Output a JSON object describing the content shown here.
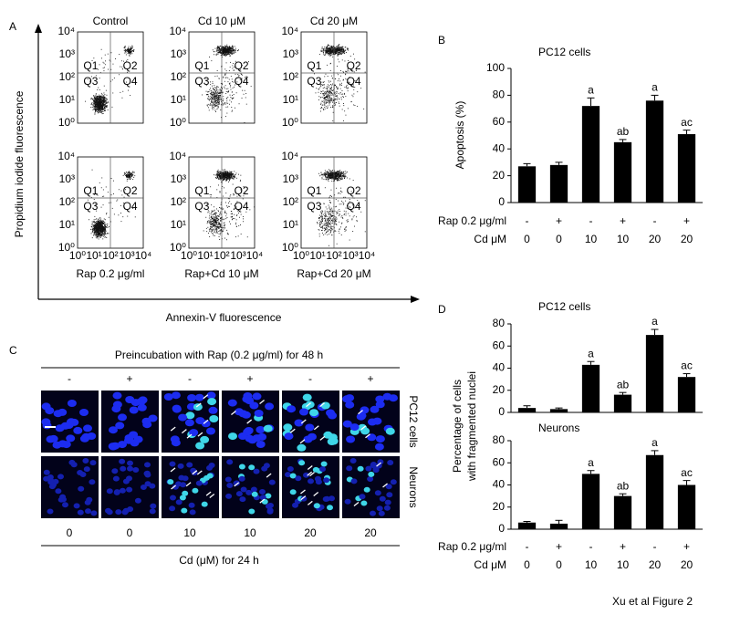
{
  "panel_labels": [
    "A",
    "B",
    "C",
    "D"
  ],
  "panel_a": {
    "ylabel": "Propidium iodide fluorescence",
    "xlabel": "Annexin-V fluorescence",
    "column_titles": [
      "Control",
      "Cd 10 μM",
      "Cd 20 μM"
    ],
    "bottom_titles": [
      "Rap 0.2 μg/ml",
      "Rap+Cd 10 μM",
      "Rap+Cd 20 μM"
    ],
    "tick_labels": [
      "10⁰",
      "10¹",
      "10²",
      "10³",
      "10⁴"
    ],
    "quadrants": [
      "Q1",
      "Q2",
      "Q3",
      "Q4"
    ]
  },
  "panel_c": {
    "title": "Preincubation with Rap (0.2 μg/ml) for 48 h",
    "rap": [
      "-",
      "+",
      "-",
      "+",
      "-",
      "+"
    ],
    "cd": [
      "0",
      "0",
      "10",
      "10",
      "20",
      "20"
    ],
    "rows": [
      "PC12 cells",
      "Neurons"
    ],
    "footer": "Cd (μM) for 24 h"
  },
  "chart_data": [
    {
      "type": "bar",
      "title": "PC12 cells",
      "ylabel": "Apoptosis (%)",
      "color": "#000000",
      "values": [
        27,
        28,
        72,
        45,
        76,
        51
      ],
      "errors": [
        2,
        2,
        6,
        2,
        4,
        3
      ],
      "annotations": [
        null,
        null,
        "a",
        "ab",
        "a",
        "ac"
      ],
      "ylim": [
        0,
        100
      ],
      "yticks": [
        0,
        20,
        40,
        60,
        80,
        100
      ],
      "rows": [
        {
          "label": "Rap 0.2 μg/ml",
          "values": [
            "-",
            "+",
            "-",
            "+",
            "-",
            "+"
          ]
        },
        {
          "label": "Cd μM",
          "values": [
            "0",
            "0",
            "10",
            "10",
            "20",
            "20"
          ]
        }
      ]
    },
    {
      "type": "bar",
      "title": "PC12 cells",
      "ylabel": [
        "Percentage of cells",
        "with fragmented nuclei"
      ],
      "color": "#000000",
      "values": [
        4,
        3,
        43,
        16,
        70,
        32
      ],
      "errors": [
        2,
        1,
        3,
        2,
        5,
        3
      ],
      "annotations": [
        null,
        null,
        "a",
        "ab",
        "a",
        "ac"
      ],
      "ylim": [
        0,
        80
      ],
      "yticks": [
        0,
        20,
        40,
        60,
        80
      ]
    },
    {
      "type": "bar",
      "title": "Neurons",
      "color": "#000000",
      "values": [
        6,
        5,
        50,
        30,
        67,
        40
      ],
      "errors": [
        1,
        3,
        3,
        2,
        4,
        4
      ],
      "annotations": [
        null,
        null,
        "a",
        "ab",
        "a",
        "ac"
      ],
      "ylim": [
        0,
        80
      ],
      "yticks": [
        0,
        20,
        40,
        60,
        80
      ],
      "rows": [
        {
          "label": "Rap 0.2 μg/ml",
          "values": [
            "-",
            "+",
            "-",
            "+",
            "-",
            "+"
          ]
        },
        {
          "label": "Cd μM",
          "values": [
            "0",
            "0",
            "10",
            "10",
            "20",
            "20"
          ]
        }
      ]
    }
  ],
  "caption": "Xu et al Figure 2"
}
